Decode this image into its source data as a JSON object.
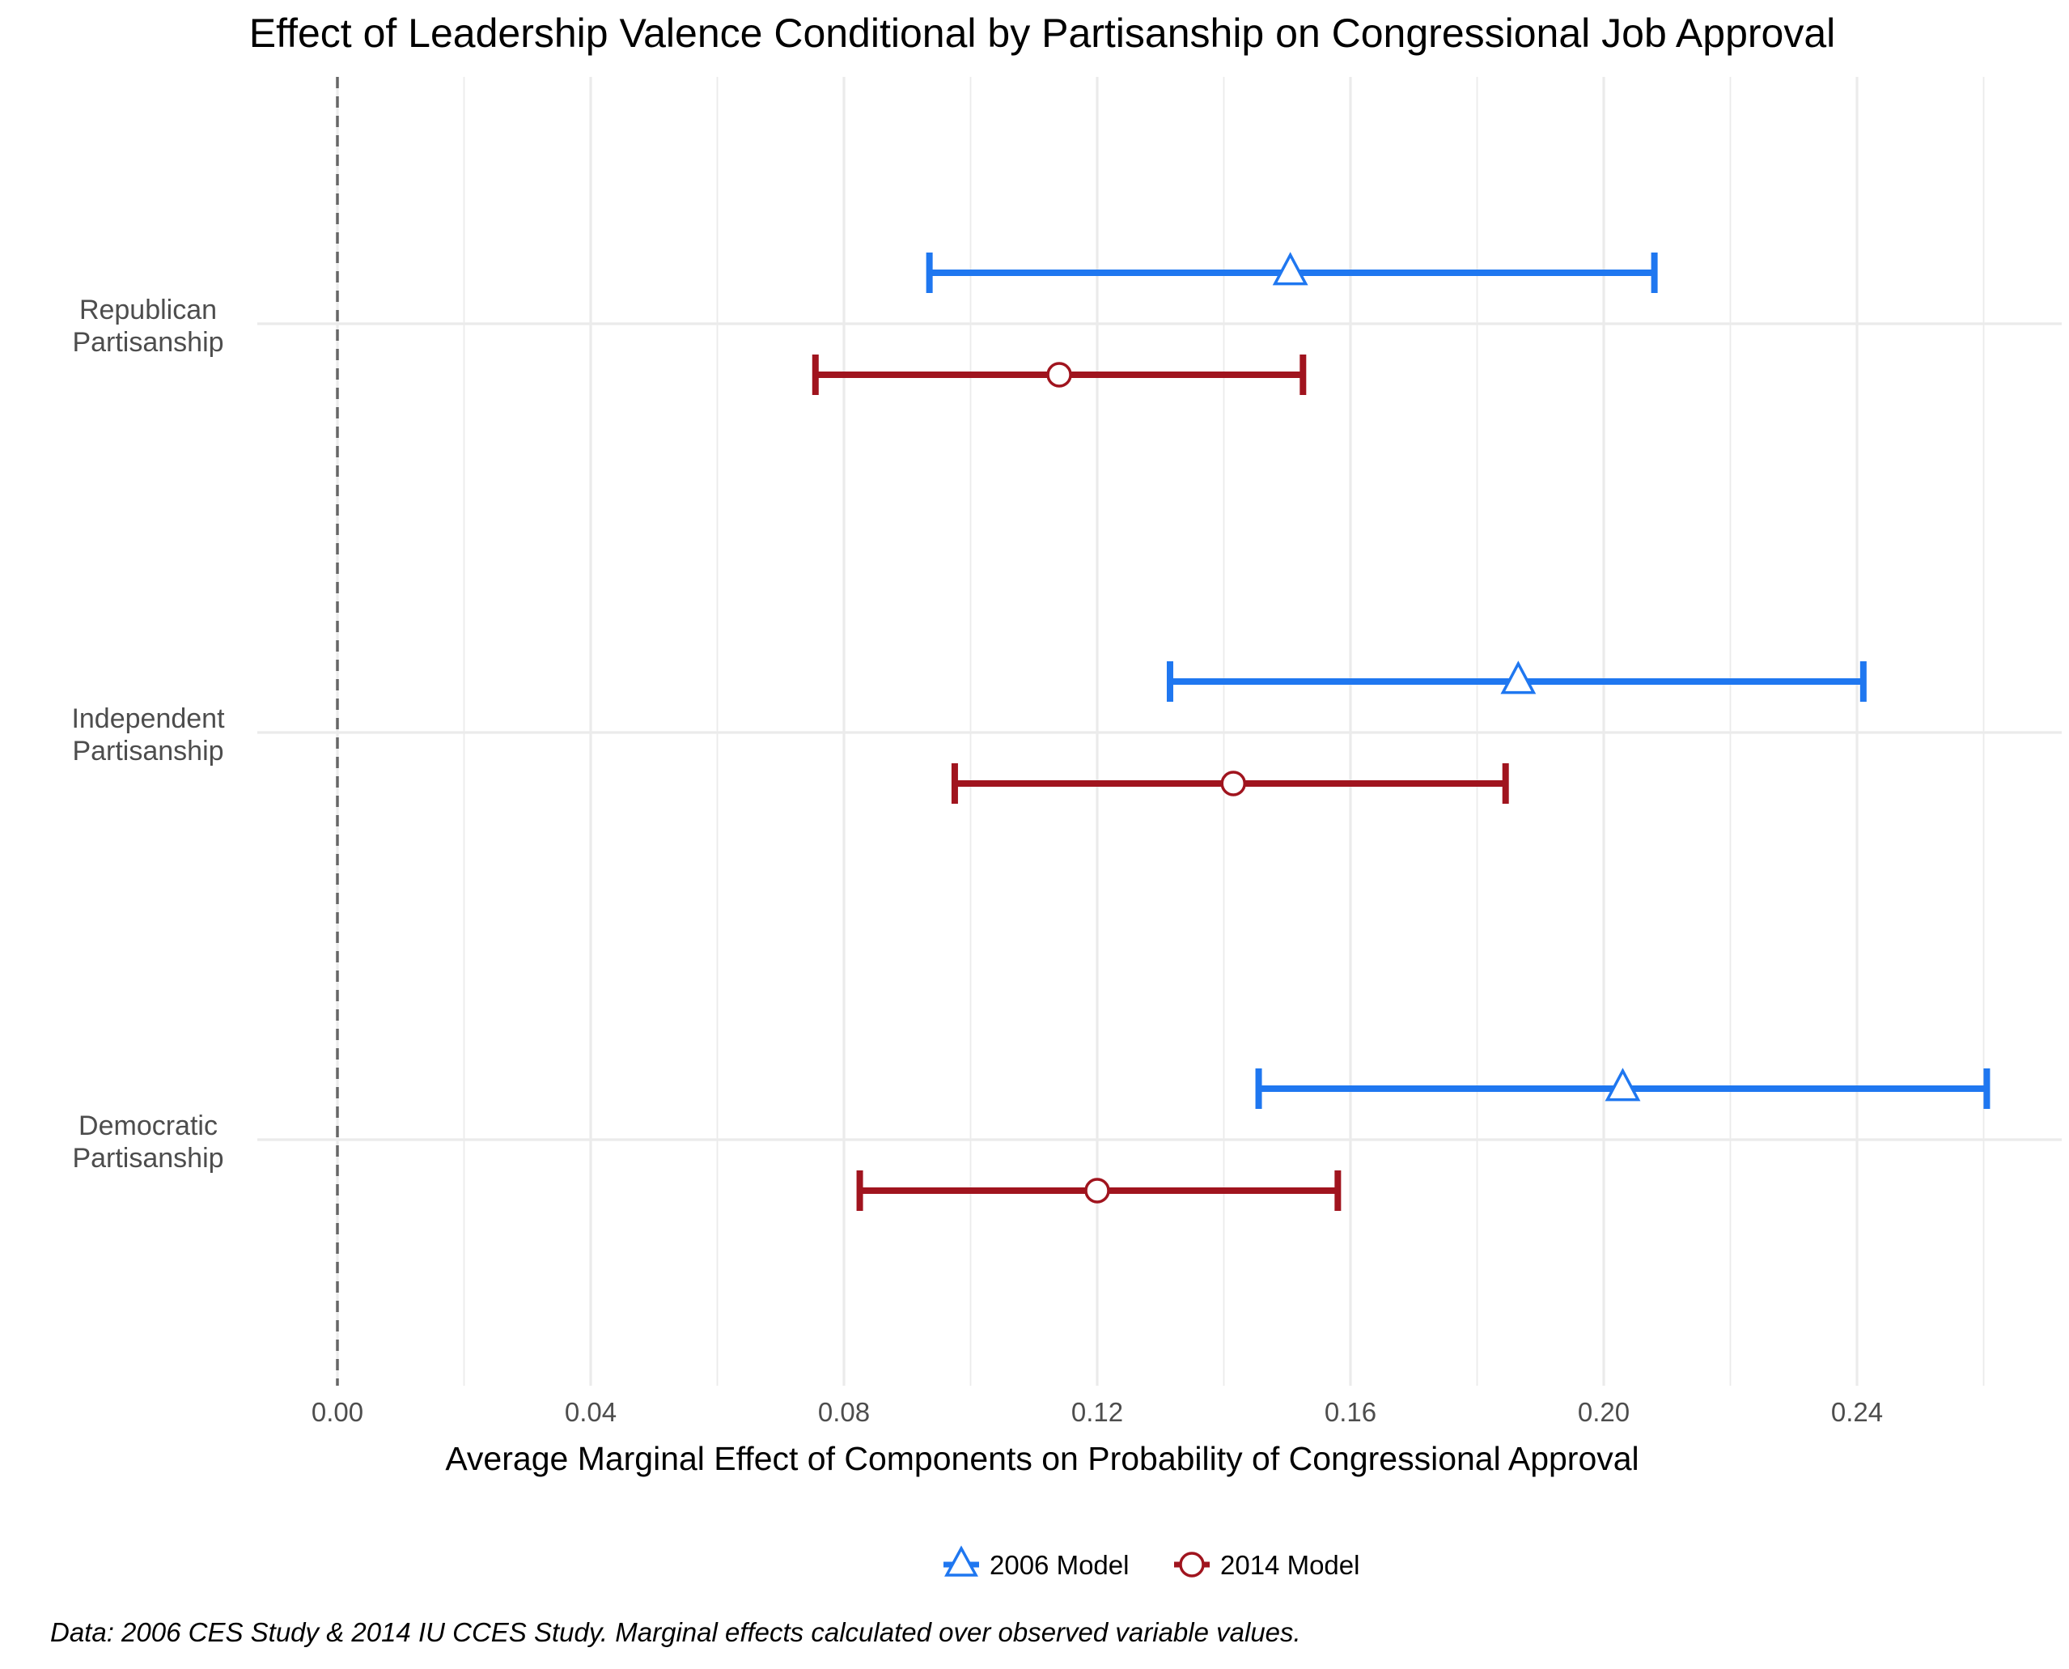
{
  "chart_data": {
    "type": "errorbar",
    "orientation": "horizontal",
    "title": "Effect of Leadership Valence Conditional by Partisanship on Congressional  Job Approval",
    "xlabel": "Average Marginal Effect of Components on Probability of Congressional Approval",
    "ylabel": "",
    "xlim": [
      -0.013,
      0.275
    ],
    "x_ticks": [
      "0.00",
      "0.04",
      "0.08",
      "0.12",
      "0.16",
      "0.20",
      "0.24"
    ],
    "x_tick_values": [
      0.0,
      0.04,
      0.08,
      0.12,
      0.16,
      0.2,
      0.24
    ],
    "reference_line": 0.0,
    "grid": true,
    "legend_position": "bottom",
    "categories": [
      [
        "Republican",
        "Partisanship"
      ],
      [
        "Independent",
        "Partisanship"
      ],
      [
        "Democratic",
        "Partisanship"
      ]
    ],
    "series": [
      {
        "name": "2006 Model",
        "color": "#1f77f0",
        "marker": "triangle",
        "estimates": [
          0.1505,
          0.1865,
          0.203
        ],
        "lower": [
          0.0935,
          0.1315,
          0.1455
        ],
        "upper": [
          0.208,
          0.241,
          0.2605
        ]
      },
      {
        "name": "2014 Model",
        "color": "#a0141e",
        "marker": "circle",
        "estimates": [
          0.114,
          0.1415,
          0.12
        ],
        "lower": [
          0.0755,
          0.0975,
          0.0825
        ],
        "upper": [
          0.1525,
          0.1845,
          0.158
        ]
      }
    ]
  },
  "caption": "Data: 2006 CES Study & 2014 IU CCES Study. Marginal effects calculated over observed variable values."
}
